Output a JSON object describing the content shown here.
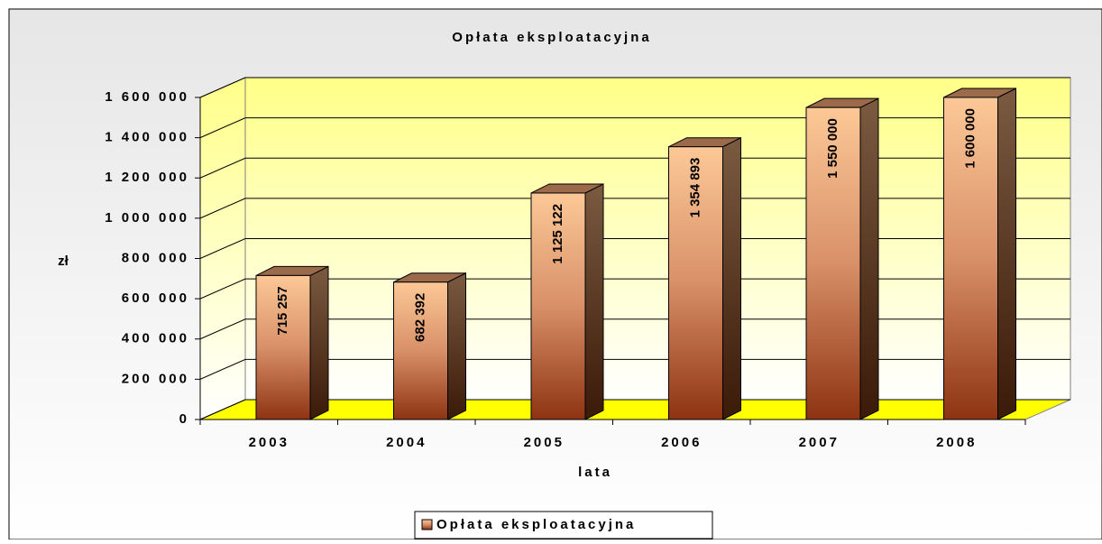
{
  "chart_data": {
    "type": "bar3d",
    "title": "Opłata eksploatacyjna",
    "x_label": "lata",
    "y_label": "zł",
    "categories": [
      "2003",
      "2004",
      "2005",
      "2006",
      "2007",
      "2008"
    ],
    "series": [
      {
        "name": "Opłata eksploatacyjna",
        "color": "#c8703f",
        "values": [
          715257,
          682392,
          1125122,
          1354893,
          1550000,
          1600000
        ],
        "value_labels": [
          "715 257",
          "682 392",
          "1 125 122",
          "1 354 893",
          "1 550 000",
          "1 600 000"
        ]
      }
    ],
    "ylim": [
      0,
      1600000
    ],
    "yticks": [
      0,
      {
        "value": 200000,
        "label": "200 000"
      },
      {
        "value": 400000,
        "label": "400 000"
      },
      {
        "value": 600000,
        "label": "600 000"
      },
      {
        "value": 800000,
        "label": "800 000"
      },
      {
        "value": 1000000,
        "label": "1 000 000"
      },
      {
        "value": 1200000,
        "label": "1 200 000"
      },
      {
        "value": 1400000,
        "label": "1 400 000"
      },
      {
        "value": 1600000,
        "label": "1 600 000"
      }
    ],
    "grid": true,
    "legend": "bottom"
  }
}
